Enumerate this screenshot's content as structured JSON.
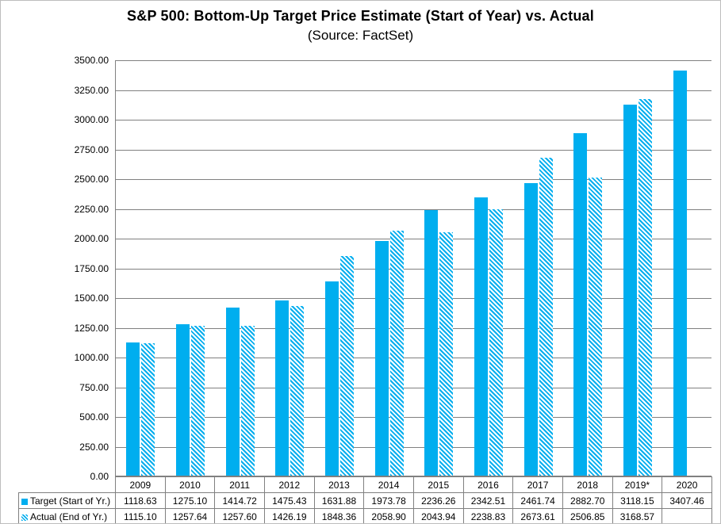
{
  "title": "S&P 500: Bottom-Up Target Price Estimate (Start of Year) vs. Actual",
  "subtitle": "(Source: FactSet)",
  "colors": {
    "bar_blue": "#00AEEF",
    "grid_gray": "#808080"
  },
  "chart_data": {
    "type": "bar",
    "title": "S&P 500: Bottom-Up Target Price Estimate (Start of Year) vs. Actual",
    "subtitle": "(Source: FactSet)",
    "categories": [
      "2009",
      "2010",
      "2011",
      "2012",
      "2013",
      "2014",
      "2015",
      "2016",
      "2017",
      "2018",
      "2019*",
      "2020"
    ],
    "series": [
      {
        "name": "Target (Start of Yr.)",
        "style": "solid",
        "values": [
          1118.63,
          1275.1,
          1414.72,
          1475.43,
          1631.88,
          1973.78,
          2236.26,
          2342.51,
          2461.74,
          2882.7,
          3118.15,
          3407.46
        ]
      },
      {
        "name": "Actual (End of Yr.)",
        "style": "hatched",
        "values": [
          1115.1,
          1257.64,
          1257.6,
          1426.19,
          1848.36,
          2058.9,
          2043.94,
          2238.83,
          2673.61,
          2506.85,
          3168.57,
          null
        ]
      }
    ],
    "xlabel": "",
    "ylabel": "",
    "ylim": [
      0,
      3500
    ],
    "ytick_step": 250,
    "ytick_decimals": 2,
    "grid": "horizontal",
    "legend_position": "table-left",
    "data_table_shown": true
  }
}
